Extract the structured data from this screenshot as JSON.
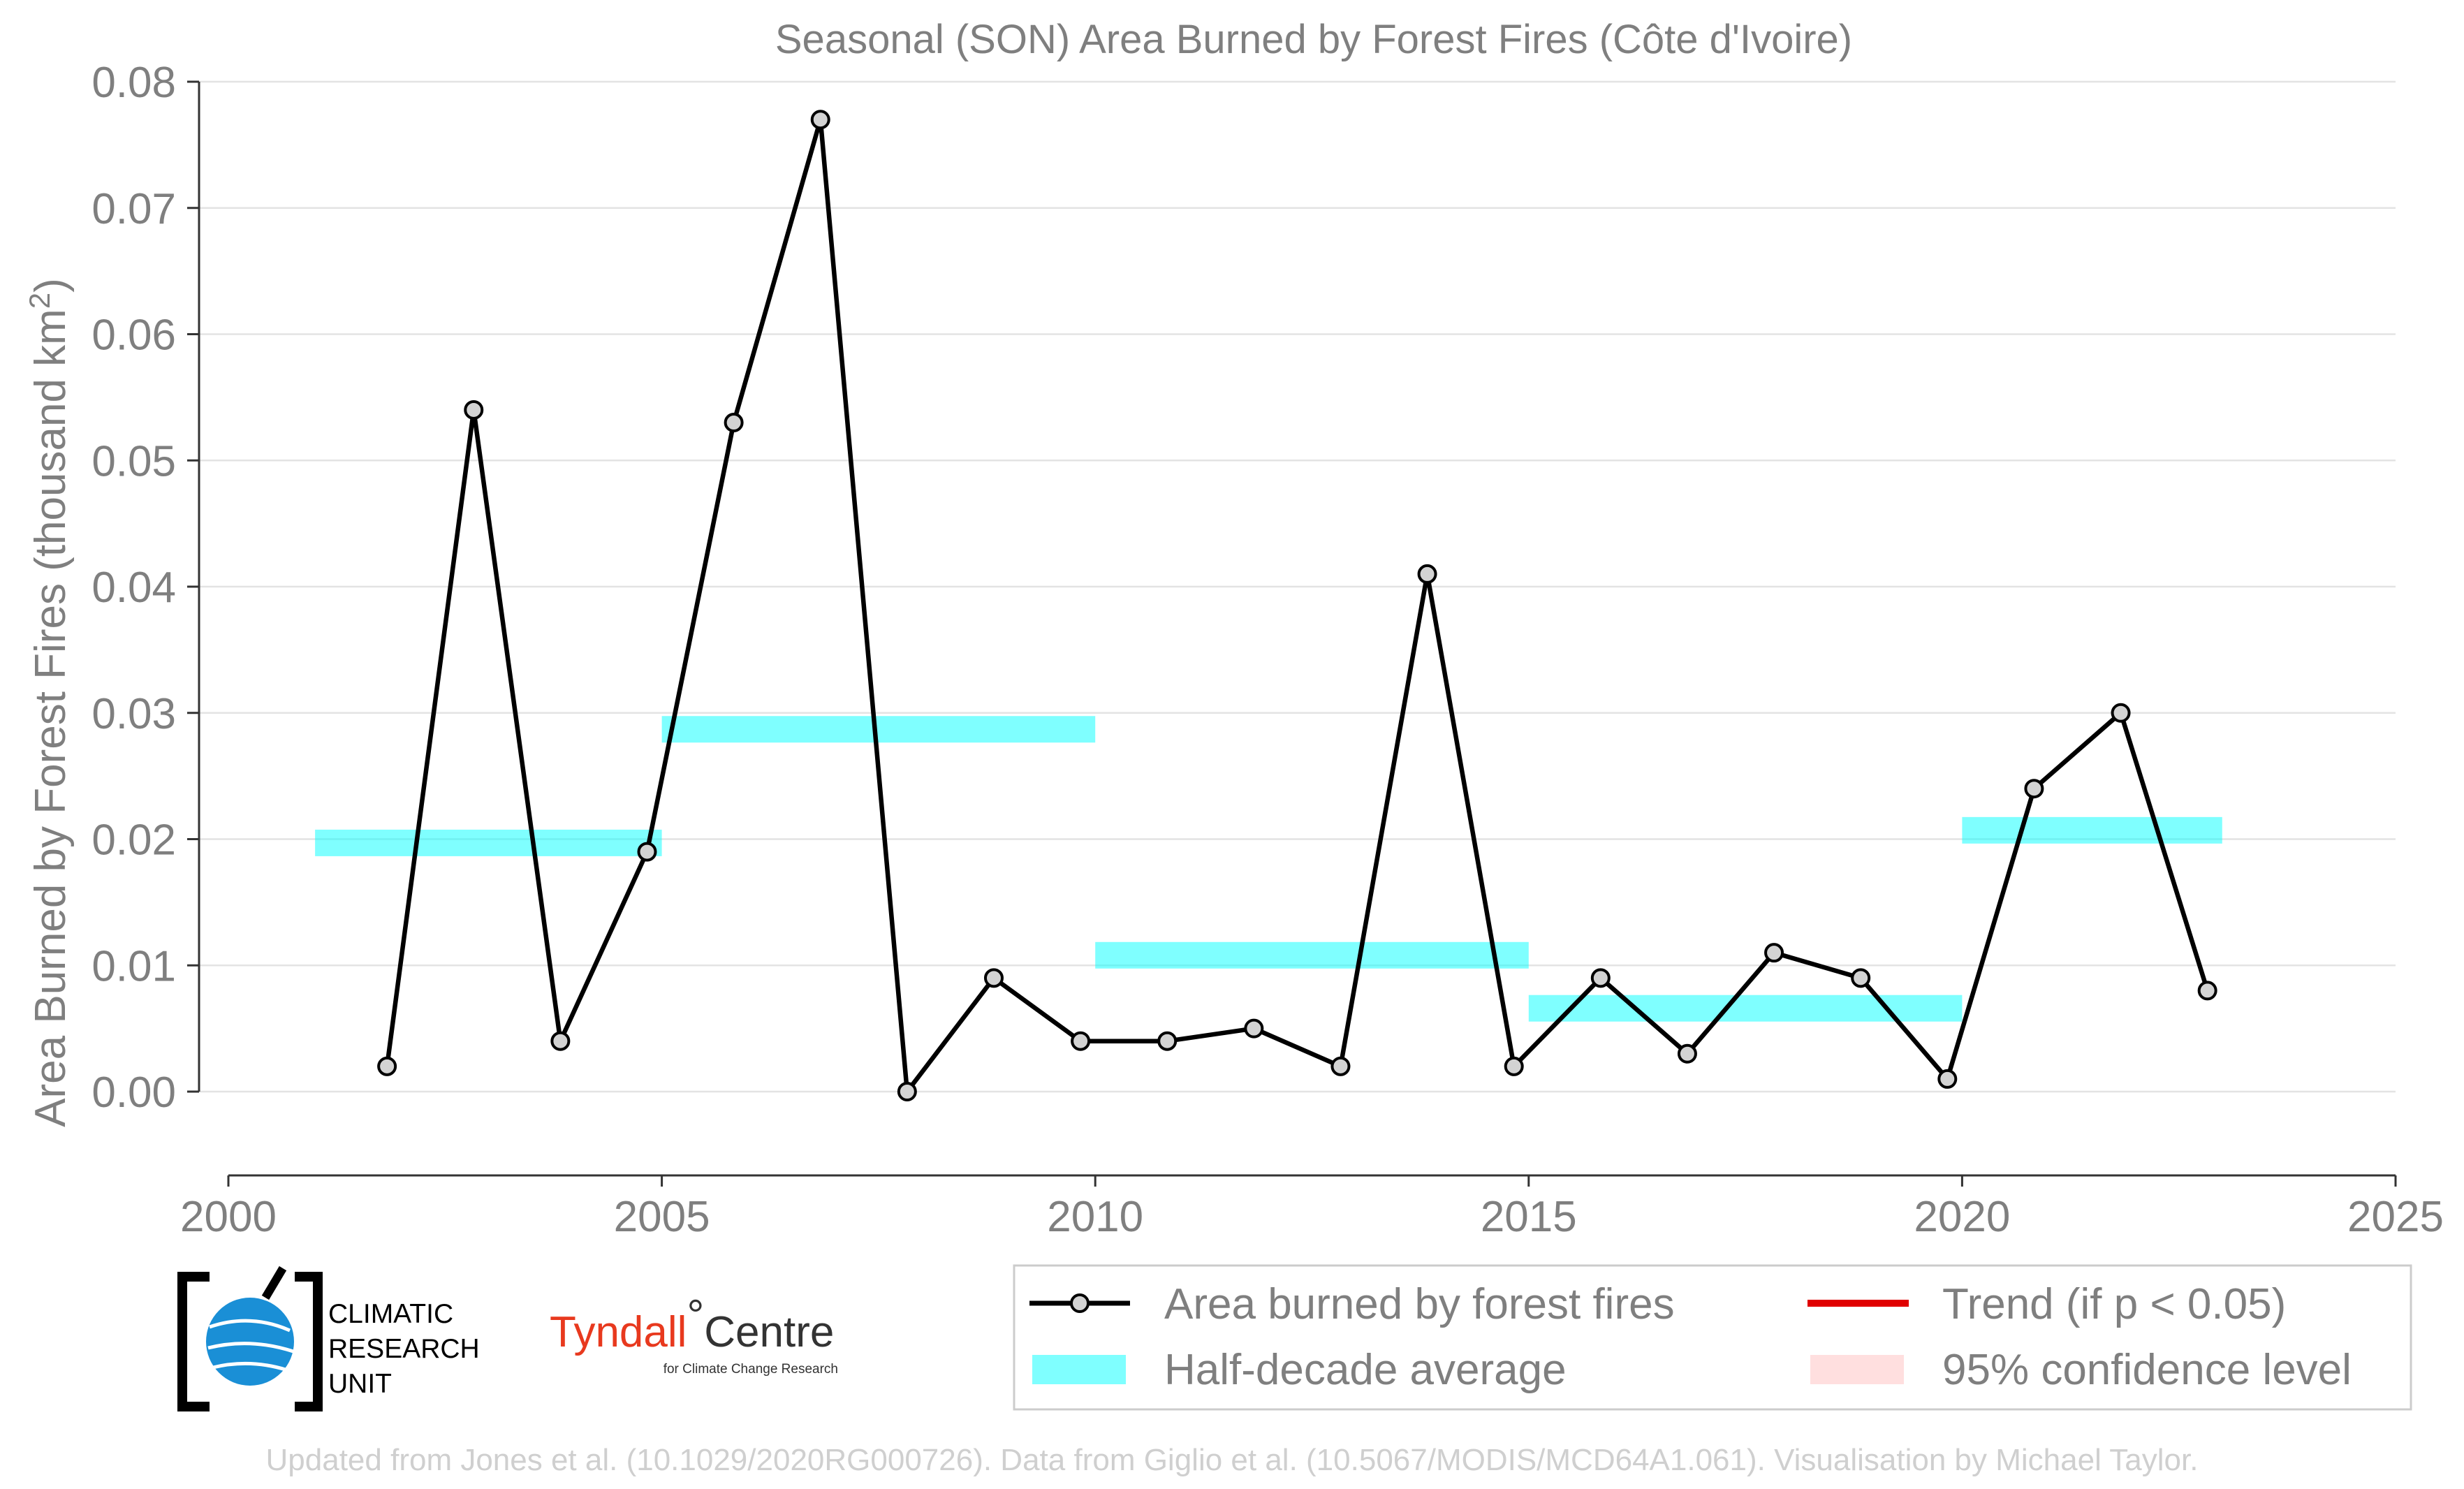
{
  "chart_data": {
    "type": "line",
    "title": "Seasonal (SON) Area Burned by Forest Fires (Côte d'Ivoire)",
    "ylabel": "Area Burned by Forest Fires (thousand km",
    "ylabel_superscript": "2",
    "ylabel_close": ")",
    "xlabel": "",
    "xlim": [
      2000,
      2025
    ],
    "ylim": [
      0.0,
      0.08
    ],
    "xticks": [
      "2000",
      "2005",
      "2010",
      "2015",
      "2020",
      "2025"
    ],
    "xtick_values": [
      2000,
      2005,
      2010,
      2015,
      2020,
      2025
    ],
    "yticks": [
      "0.00",
      "0.01",
      "0.02",
      "0.03",
      "0.04",
      "0.05",
      "0.06",
      "0.07",
      "0.08"
    ],
    "ytick_values": [
      0.0,
      0.01,
      0.02,
      0.03,
      0.04,
      0.05,
      0.06,
      0.07,
      0.08
    ],
    "grid": "horizontal",
    "series": [
      {
        "name": "Area burned by forest fires",
        "type": "line",
        "color": "#000000",
        "marker_fill": "#d3d3d3",
        "x": [
          2001.83,
          2002.83,
          2003.83,
          2004.83,
          2005.83,
          2006.83,
          2007.83,
          2008.83,
          2009.83,
          2010.83,
          2011.83,
          2012.83,
          2013.83,
          2014.83,
          2015.83,
          2016.83,
          2017.83,
          2018.83,
          2019.83,
          2020.83,
          2021.83,
          2022.83
        ],
        "y": [
          0.002,
          0.054,
          0.004,
          0.019,
          0.053,
          0.077,
          0.0,
          0.009,
          0.004,
          0.004,
          0.005,
          0.002,
          0.041,
          0.002,
          0.009,
          0.003,
          0.011,
          0.009,
          0.001,
          0.024,
          0.03,
          0.008
        ]
      },
      {
        "name": "Half-decade average",
        "type": "band",
        "color": "#00ffff",
        "segments": [
          {
            "x": [
              2001,
              2005
            ],
            "y": 0.0197
          },
          {
            "x": [
              2005,
              2010
            ],
            "y": 0.0287
          },
          {
            "x": [
              2010,
              2015
            ],
            "y": 0.0108
          },
          {
            "x": [
              2015,
              2020
            ],
            "y": 0.0066
          },
          {
            "x": [
              2020,
              2023
            ],
            "y": 0.0207
          }
        ]
      }
    ],
    "legend": {
      "placement": "bottom-right",
      "entries": [
        {
          "label": "Area burned by forest fires",
          "kind": "line-marker",
          "color": "#000000"
        },
        {
          "label": "Trend (if p < 0.05)",
          "kind": "line",
          "color": "#e00000"
        },
        {
          "label": "Half-decade average",
          "kind": "band",
          "color": "#00ffff"
        },
        {
          "label": "95% confidence level",
          "kind": "band",
          "color": "#ffc0c0"
        }
      ]
    }
  },
  "logos": {
    "cru_line1": "CLIMATIC",
    "cru_line2": "RESEARCH",
    "cru_line3": "UNIT",
    "tyndall_main": "Tyndall",
    "tyndall_degree": "°",
    "tyndall_centre": "Centre",
    "tyndall_sub": "for Climate Change Research"
  },
  "credit": "Updated from Jones et al. (10.1029/2020RG000726). Data from Giglio et al. (10.5067/MODIS/MCD64A1.061). Visualisation by Michael Taylor."
}
